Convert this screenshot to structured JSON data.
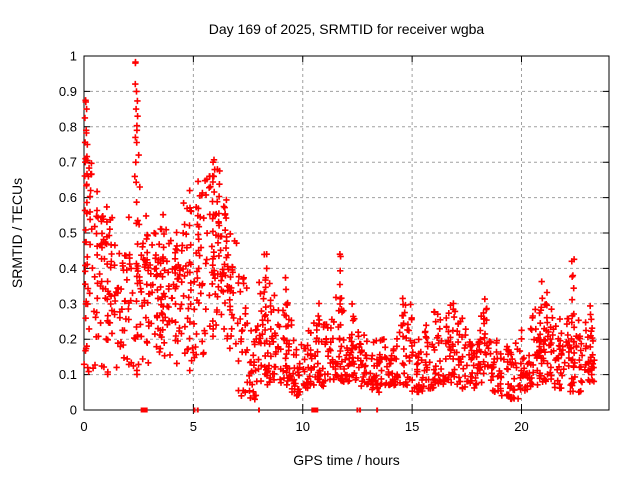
{
  "chart_data": {
    "type": "scatter",
    "title": "Day 169 of 2025, SRMTID for receiver wgba",
    "xlabel": "GPS time / hours",
    "ylabel": "SRMTID / TECUs",
    "xlim": [
      0,
      24
    ],
    "ylim": [
      0,
      1
    ],
    "xticks": [
      0,
      5,
      10,
      15,
      20
    ],
    "yticks": [
      0,
      0.1,
      0.2,
      0.3,
      0.4,
      0.5,
      0.6,
      0.7,
      0.8,
      0.9,
      1
    ],
    "grid": true,
    "legend": "none",
    "marker": "plus",
    "marker_color": "#ff0000",
    "grid_color": "#a0a0a0",
    "border_color": "#000000",
    "text_color": "#000000",
    "background_color": "#ffffff",
    "seed": 7,
    "density_bins": [
      [
        0,
        0.5,
        34,
        0.1,
        0.72,
        1.1
      ],
      [
        0.5,
        1,
        30,
        0.12,
        0.55,
        1.1
      ],
      [
        1,
        1.5,
        30,
        0.1,
        0.55,
        1.1
      ],
      [
        1.5,
        2,
        26,
        0.1,
        0.45,
        1.1
      ],
      [
        2,
        2.5,
        26,
        0.1,
        0.55,
        1.1
      ],
      [
        2.5,
        3,
        30,
        0.12,
        0.55,
        1.0
      ],
      [
        3,
        3.5,
        32,
        0.15,
        0.52,
        1.0
      ],
      [
        3.5,
        4,
        32,
        0.15,
        0.52,
        1.0
      ],
      [
        4,
        4.5,
        30,
        0.12,
        0.48,
        1.1
      ],
      [
        4.5,
        5,
        28,
        0.1,
        0.6,
        1.1
      ],
      [
        5,
        5.5,
        28,
        0.12,
        0.63,
        1.0
      ],
      [
        5.5,
        6,
        30,
        0.2,
        0.68,
        0.9
      ],
      [
        6,
        6.5,
        30,
        0.22,
        0.62,
        0.95
      ],
      [
        6.5,
        7,
        28,
        0.15,
        0.5,
        1.1
      ],
      [
        7,
        7.5,
        26,
        0.04,
        0.38,
        1.2
      ],
      [
        7.5,
        8,
        28,
        0.03,
        0.26,
        1.3
      ],
      [
        8,
        8.5,
        30,
        0.06,
        0.4,
        1.5
      ],
      [
        8.5,
        9,
        28,
        0.08,
        0.33,
        1.5
      ],
      [
        9,
        9.5,
        28,
        0.07,
        0.33,
        1.5
      ],
      [
        9.5,
        10,
        26,
        0.04,
        0.2,
        1.4
      ],
      [
        10,
        10.5,
        28,
        0.06,
        0.24,
        1.4
      ],
      [
        10.5,
        11,
        28,
        0.06,
        0.26,
        1.4
      ],
      [
        11,
        11.5,
        28,
        0.08,
        0.26,
        1.4
      ],
      [
        11.5,
        12,
        28,
        0.08,
        0.32,
        1.4
      ],
      [
        12,
        12.5,
        28,
        0.08,
        0.26,
        1.4
      ],
      [
        12.5,
        13,
        28,
        0.06,
        0.22,
        1.4
      ],
      [
        13,
        13.5,
        26,
        0.05,
        0.2,
        1.4
      ],
      [
        13.5,
        14,
        26,
        0.07,
        0.2,
        1.4
      ],
      [
        14,
        14.5,
        26,
        0.07,
        0.24,
        1.4
      ],
      [
        14.5,
        15,
        26,
        0.07,
        0.3,
        1.4
      ],
      [
        15,
        15.5,
        26,
        0.05,
        0.22,
        1.4
      ],
      [
        15.5,
        16,
        26,
        0.06,
        0.24,
        1.4
      ],
      [
        16,
        16.5,
        28,
        0.07,
        0.28,
        1.4
      ],
      [
        16.5,
        17,
        28,
        0.07,
        0.3,
        1.3
      ],
      [
        17,
        17.5,
        28,
        0.06,
        0.26,
        1.4
      ],
      [
        17.5,
        18,
        26,
        0.06,
        0.22,
        1.4
      ],
      [
        18,
        18.5,
        28,
        0.07,
        0.3,
        1.3
      ],
      [
        18.5,
        19,
        26,
        0.05,
        0.2,
        1.4
      ],
      [
        19,
        19.5,
        26,
        0.04,
        0.18,
        1.4
      ],
      [
        19.5,
        20,
        28,
        0.03,
        0.2,
        1.4
      ],
      [
        20,
        20.5,
        28,
        0.05,
        0.24,
        1.3
      ],
      [
        20.5,
        21,
        30,
        0.07,
        0.3,
        1.2
      ],
      [
        21,
        21.5,
        30,
        0.08,
        0.3,
        1.2
      ],
      [
        21.5,
        22,
        28,
        0.06,
        0.26,
        1.3
      ],
      [
        22,
        22.5,
        28,
        0.05,
        0.3,
        1.2
      ],
      [
        22.5,
        23,
        26,
        0.05,
        0.26,
        1.3
      ],
      [
        23,
        23.35,
        20,
        0.07,
        0.28,
        1.1
      ]
    ],
    "spikes": [
      {
        "x": 0.1,
        "base": 0.35,
        "top": 0.87,
        "n": 14
      },
      {
        "x": 0.55,
        "base": 0.2,
        "top": 0.62,
        "n": 8
      },
      {
        "x": 1.05,
        "base": 0.2,
        "top": 0.58,
        "n": 8
      },
      {
        "x": 2.4,
        "base": 0.3,
        "top": 0.98,
        "n": 13
      },
      {
        "x": 2.9,
        "base": 0.25,
        "top": 0.55,
        "n": 7
      },
      {
        "x": 3.6,
        "base": 0.25,
        "top": 0.55,
        "n": 8
      },
      {
        "x": 4.2,
        "base": 0.2,
        "top": 0.5,
        "n": 7
      },
      {
        "x": 4.85,
        "base": 0.25,
        "top": 0.62,
        "n": 8
      },
      {
        "x": 5.25,
        "base": 0.3,
        "top": 0.65,
        "n": 8
      },
      {
        "x": 5.9,
        "base": 0.35,
        "top": 0.7,
        "n": 10
      },
      {
        "x": 6.15,
        "base": 0.35,
        "top": 0.68,
        "n": 9
      },
      {
        "x": 6.5,
        "base": 0.3,
        "top": 0.6,
        "n": 8
      },
      {
        "x": 8.3,
        "base": 0.12,
        "top": 0.44,
        "n": 10
      },
      {
        "x": 9.25,
        "base": 0.12,
        "top": 0.38,
        "n": 8
      },
      {
        "x": 10.7,
        "base": 0.1,
        "top": 0.3,
        "n": 7
      },
      {
        "x": 11.7,
        "base": 0.12,
        "top": 0.44,
        "n": 9
      },
      {
        "x": 12.3,
        "base": 0.1,
        "top": 0.3,
        "n": 6
      },
      {
        "x": 14.6,
        "base": 0.1,
        "top": 0.31,
        "n": 7
      },
      {
        "x": 16.9,
        "base": 0.1,
        "top": 0.3,
        "n": 6
      },
      {
        "x": 18.3,
        "base": 0.1,
        "top": 0.31,
        "n": 8
      },
      {
        "x": 20.9,
        "base": 0.1,
        "top": 0.36,
        "n": 8
      },
      {
        "x": 21.2,
        "base": 0.1,
        "top": 0.33,
        "n": 7
      },
      {
        "x": 22.35,
        "base": 0.08,
        "top": 0.42,
        "n": 10
      },
      {
        "x": 23.2,
        "base": 0.08,
        "top": 0.3,
        "n": 8
      }
    ],
    "extreme_points": [
      [
        0.08,
        0.87
      ],
      [
        0.12,
        0.85
      ],
      [
        0.1,
        0.79
      ],
      [
        0.15,
        0.75
      ],
      [
        0.07,
        0.71
      ],
      [
        0.06,
        0.7
      ],
      [
        0.2,
        0.66
      ],
      [
        0.3,
        0.62
      ],
      [
        2.35,
        0.98
      ],
      [
        2.4,
        0.9
      ],
      [
        2.38,
        0.85
      ],
      [
        2.45,
        0.83
      ],
      [
        2.42,
        0.79
      ],
      [
        2.35,
        0.77
      ],
      [
        2.5,
        0.72
      ],
      [
        2.32,
        0.66
      ],
      [
        2.55,
        0.63
      ],
      [
        5.9,
        0.7
      ],
      [
        6.1,
        0.68
      ],
      [
        8.35,
        0.44
      ],
      [
        11.7,
        0.44
      ],
      [
        22.3,
        0.42
      ],
      [
        22.35,
        0.38
      ]
    ],
    "zero_marks": [
      {
        "x": 2.75,
        "w": 7
      },
      {
        "x": 5.05,
        "w": 2
      },
      {
        "x": 5.2,
        "w": 2
      },
      {
        "x": 8.0,
        "w": 2
      },
      {
        "x": 10.55,
        "w": 7
      },
      {
        "x": 12.5,
        "w": 2
      },
      {
        "x": 12.62,
        "w": 2
      },
      {
        "x": 13.4,
        "w": 2
      }
    ]
  }
}
